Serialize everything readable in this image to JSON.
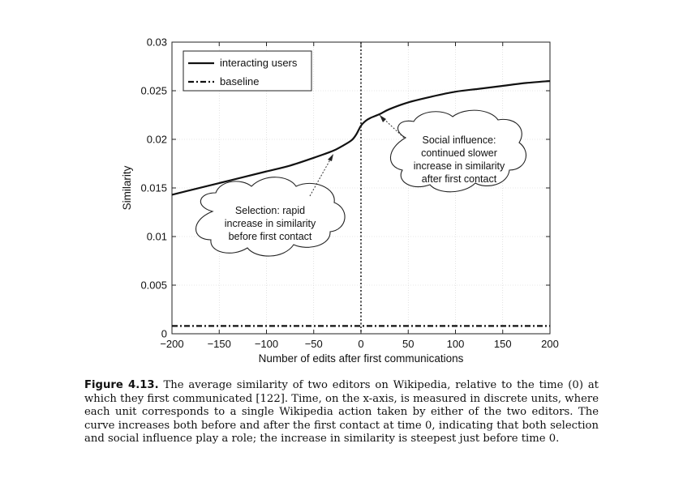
{
  "chart_data": {
    "type": "line",
    "xlabel": "Number of edits after first communications",
    "ylabel": "Similarity",
    "xlim": [
      -200,
      200
    ],
    "ylim": [
      0,
      0.03
    ],
    "xticks": [
      "−200",
      "−150",
      "−100",
      "−50",
      "0",
      "50",
      "100",
      "150",
      "200"
    ],
    "yticks": [
      "0",
      "0.005",
      "0.01",
      "0.015",
      "0.02",
      "0.025",
      "0.03"
    ],
    "vline_x": 0,
    "legend": {
      "position": "top-left"
    },
    "series": [
      {
        "name": "interacting users",
        "style": "solid",
        "x": [
          -200,
          -175,
          -150,
          -125,
          -100,
          -75,
          -50,
          -30,
          -20,
          -10,
          -5,
          0,
          5,
          10,
          20,
          30,
          50,
          75,
          100,
          125,
          150,
          175,
          200
        ],
        "y": [
          0.0143,
          0.0149,
          0.0155,
          0.0161,
          0.0167,
          0.0173,
          0.0181,
          0.0188,
          0.0193,
          0.0199,
          0.0205,
          0.0214,
          0.0219,
          0.0222,
          0.0226,
          0.0231,
          0.0238,
          0.0244,
          0.0249,
          0.0252,
          0.0255,
          0.0258,
          0.026
        ]
      },
      {
        "name": "baseline",
        "style": "dash-dot",
        "x": [
          -200,
          200
        ],
        "y": [
          0.0008,
          0.0008
        ]
      }
    ],
    "annotations": [
      {
        "id": "selection",
        "lines": [
          "Selection: rapid",
          "increase in similarity",
          "before first contact"
        ]
      },
      {
        "id": "social",
        "lines": [
          "Social influence:",
          "continued slower",
          "increase in similarity",
          "after first contact"
        ]
      }
    ]
  },
  "caption": {
    "label": "Figure 4.13.",
    "text": "The average similarity of two editors on Wikipedia, relative to the time (0) at which they first communicated [122]. Time, on the x-axis, is measured in discrete units, where each unit corresponds to a single Wikipedia action taken by either of the two editors. The curve increases both before and after the first contact at time 0, indicating that both selection and social influence play a role; the increase in similarity is steepest just before time 0."
  }
}
